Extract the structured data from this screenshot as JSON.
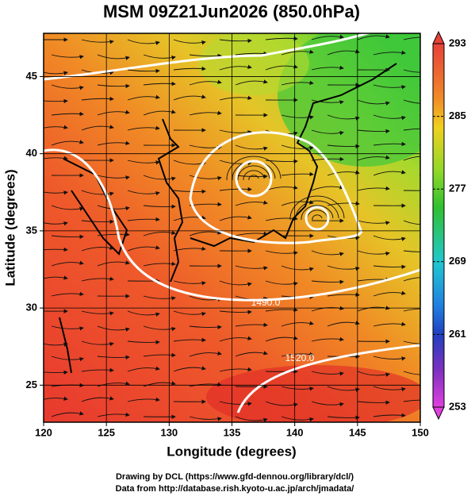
{
  "chart_data": {
    "type": "map",
    "title": "MSM 09Z21Jun2026 (850.0hPa)",
    "x_label": "Longitude (degrees)",
    "y_label": "Latitude  (degrees)",
    "xlim": [
      120,
      150
    ],
    "ylim": [
      22.6,
      47.8
    ],
    "xticks": [
      120,
      125,
      130,
      135,
      140,
      145,
      150
    ],
    "yticks": [
      25,
      30,
      35,
      40,
      45
    ],
    "grid": true,
    "colorbar": {
      "lim": [
        253,
        293
      ],
      "ticks": [
        253,
        261,
        269,
        277,
        285,
        293
      ]
    },
    "contour_labels": [
      "1490.0",
      "1520.0"
    ],
    "footer": [
      "Drawing by DCL (https://www.gfd-dennou.org/library/dcl/)",
      "Data from http://database.rish.kyoto-u.ac.jp/arch/jmadata/"
    ]
  }
}
